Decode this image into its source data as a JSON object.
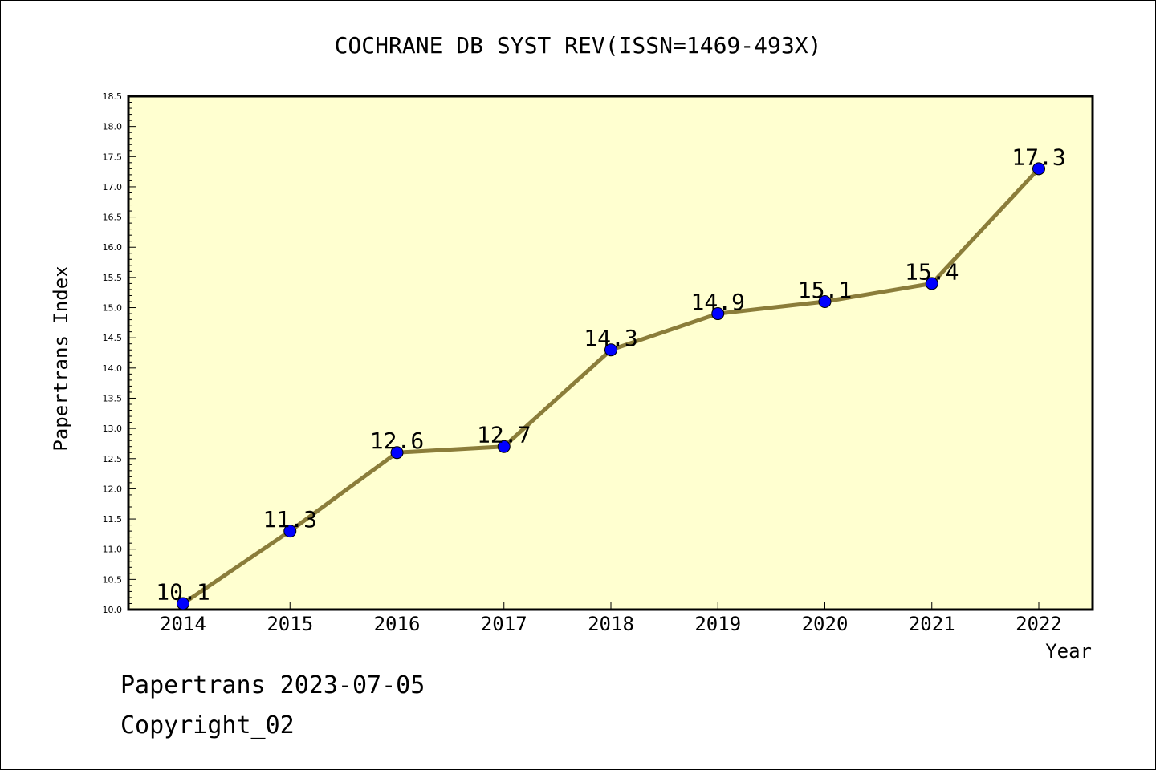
{
  "chart_data": {
    "type": "line",
    "title": "COCHRANE DB SYST REV(ISSN=1469-493X)",
    "xlabel": "Year",
    "ylabel": "Papertrans Index",
    "x": [
      "2014",
      "2015",
      "2016",
      "2017",
      "2018",
      "2019",
      "2020",
      "2021",
      "2022"
    ],
    "values": [
      10.1,
      11.3,
      12.6,
      12.7,
      14.3,
      14.9,
      15.1,
      15.4,
      17.3
    ],
    "data_labels": [
      "10.1",
      "11.3",
      "12.6",
      "12.7",
      "14.3",
      "14.9",
      "15.1",
      "15.4",
      "17.3"
    ],
    "ylim": [
      10.0,
      18.5
    ],
    "yticks": [
      "10.0",
      "10.5",
      "11.0",
      "11.5",
      "12.0",
      "12.5",
      "13.0",
      "13.5",
      "14.0",
      "14.5",
      "15.0",
      "15.5",
      "16.0",
      "16.5",
      "17.0",
      "17.5",
      "18.0",
      "18.5"
    ],
    "grid": false,
    "colors": {
      "line": "#8b7d3a",
      "marker": "#0000ff",
      "plot_background": "#ffffd0"
    }
  },
  "footer": {
    "date_line": "Papertrans 2023-07-05",
    "copyright": "Copyright_02"
  }
}
